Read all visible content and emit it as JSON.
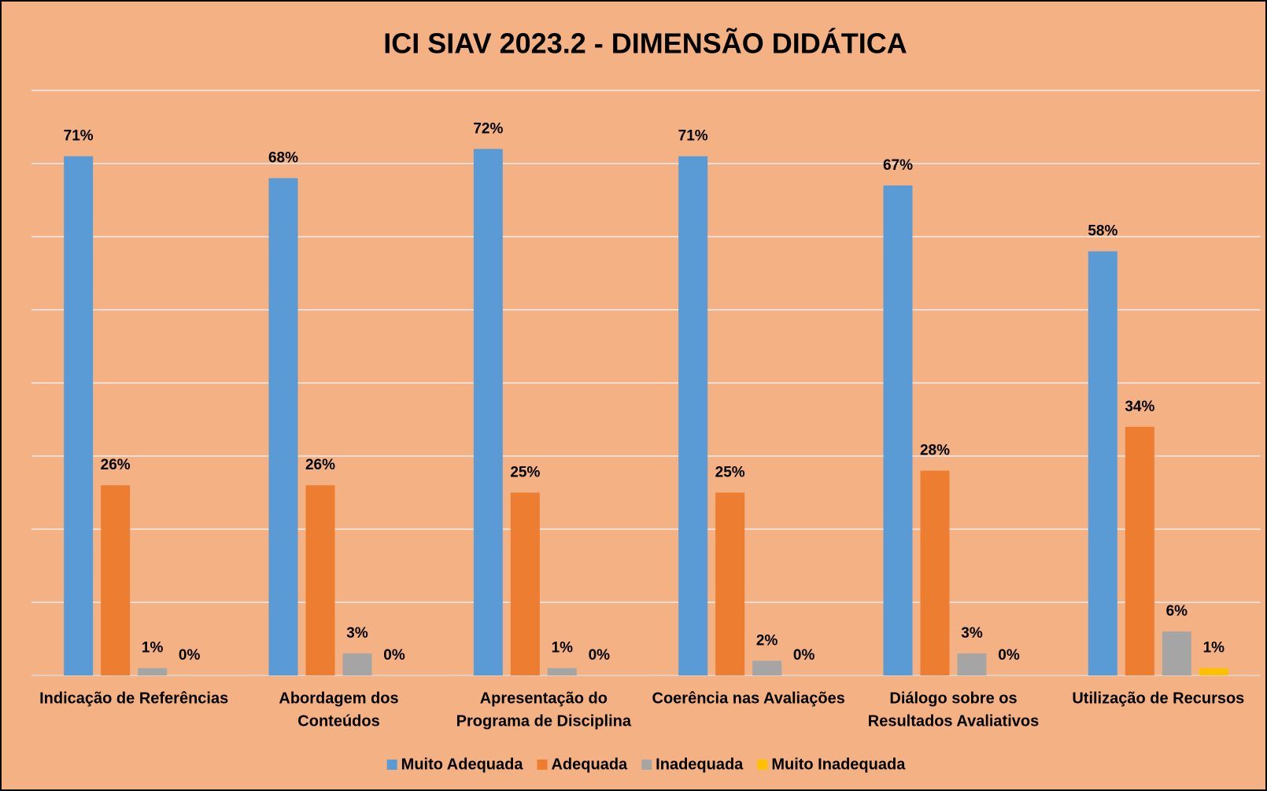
{
  "chart_data": {
    "type": "bar",
    "title": "ICI SIAV 2023.2 - DIMENSÃO DIDÁTICA",
    "categories": [
      [
        "Indicação de Referências"
      ],
      [
        "Abordagem dos",
        "Conteúdos"
      ],
      [
        "Apresentação do",
        "Programa de Disciplina"
      ],
      [
        "Coerência nas Avaliações"
      ],
      [
        "Diálogo sobre os",
        "Resultados Avaliativos"
      ],
      [
        "Utilização de Recursos"
      ]
    ],
    "series": [
      {
        "name": "Muito Adequada",
        "color": "#5b9bd5",
        "values": [
          71,
          68,
          72,
          71,
          67,
          58
        ],
        "value_labels": [
          "71%",
          "68%",
          "72%",
          "71%",
          "67%",
          "58%"
        ]
      },
      {
        "name": "Adequada",
        "color": "#ed7d31",
        "values": [
          26,
          26,
          25,
          25,
          28,
          34
        ],
        "value_labels": [
          "26%",
          "26%",
          "25%",
          "25%",
          "28%",
          "34%"
        ]
      },
      {
        "name": "Inadequada",
        "color": "#a5a5a5",
        "values": [
          1,
          3,
          1,
          2,
          3,
          6
        ],
        "value_labels": [
          "1%",
          "3%",
          "1%",
          "2%",
          "3%",
          "6%"
        ]
      },
      {
        "name": "Muito Inadequada",
        "color": "#ffc000",
        "values": [
          0,
          0,
          0,
          0,
          0,
          1
        ],
        "value_labels": [
          "0%",
          "0%",
          "0%",
          "0%",
          "0%",
          "1%"
        ]
      }
    ],
    "ylim": [
      0,
      80
    ],
    "yticks": [
      0,
      10,
      20,
      30,
      40,
      50,
      60,
      70,
      80
    ],
    "grid": true,
    "legend": "bottom"
  }
}
